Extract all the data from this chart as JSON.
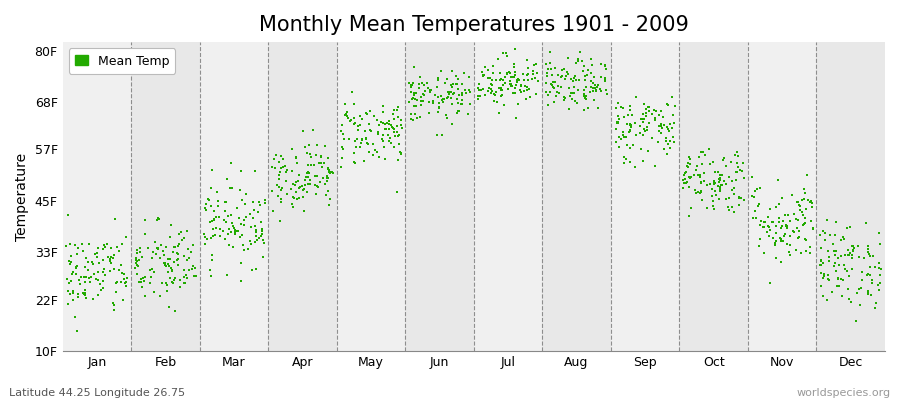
{
  "title": "Monthly Mean Temperatures 1901 - 2009",
  "ylabel": "Temperature",
  "subtitle_left": "Latitude 44.25 Longitude 26.75",
  "subtitle_right": "worldspecies.org",
  "ytick_labels": [
    "10F",
    "22F",
    "33F",
    "45F",
    "57F",
    "68F",
    "80F"
  ],
  "ytick_values": [
    10,
    22,
    33,
    45,
    57,
    68,
    80
  ],
  "months": [
    "Jan",
    "Feb",
    "Mar",
    "Apr",
    "May",
    "Jun",
    "Jul",
    "Aug",
    "Sep",
    "Oct",
    "Nov",
    "Dec"
  ],
  "month_means_F": [
    28,
    30,
    40,
    51,
    61,
    69,
    73,
    72,
    62,
    50,
    40,
    30
  ],
  "month_stds_F": [
    5,
    5,
    5,
    4,
    4,
    3,
    3,
    3,
    4,
    4,
    5,
    5
  ],
  "n_years": 109,
  "dot_color": "#22aa00",
  "bg_color": "#ffffff",
  "plot_bg_color": "#f0f0f0",
  "band_color_even": "#f0f0f0",
  "band_color_odd": "#e8e8e8",
  "legend_label": "Mean Temp",
  "dot_size": 4,
  "title_fontsize": 15,
  "axis_fontsize": 10,
  "tick_fontsize": 9
}
